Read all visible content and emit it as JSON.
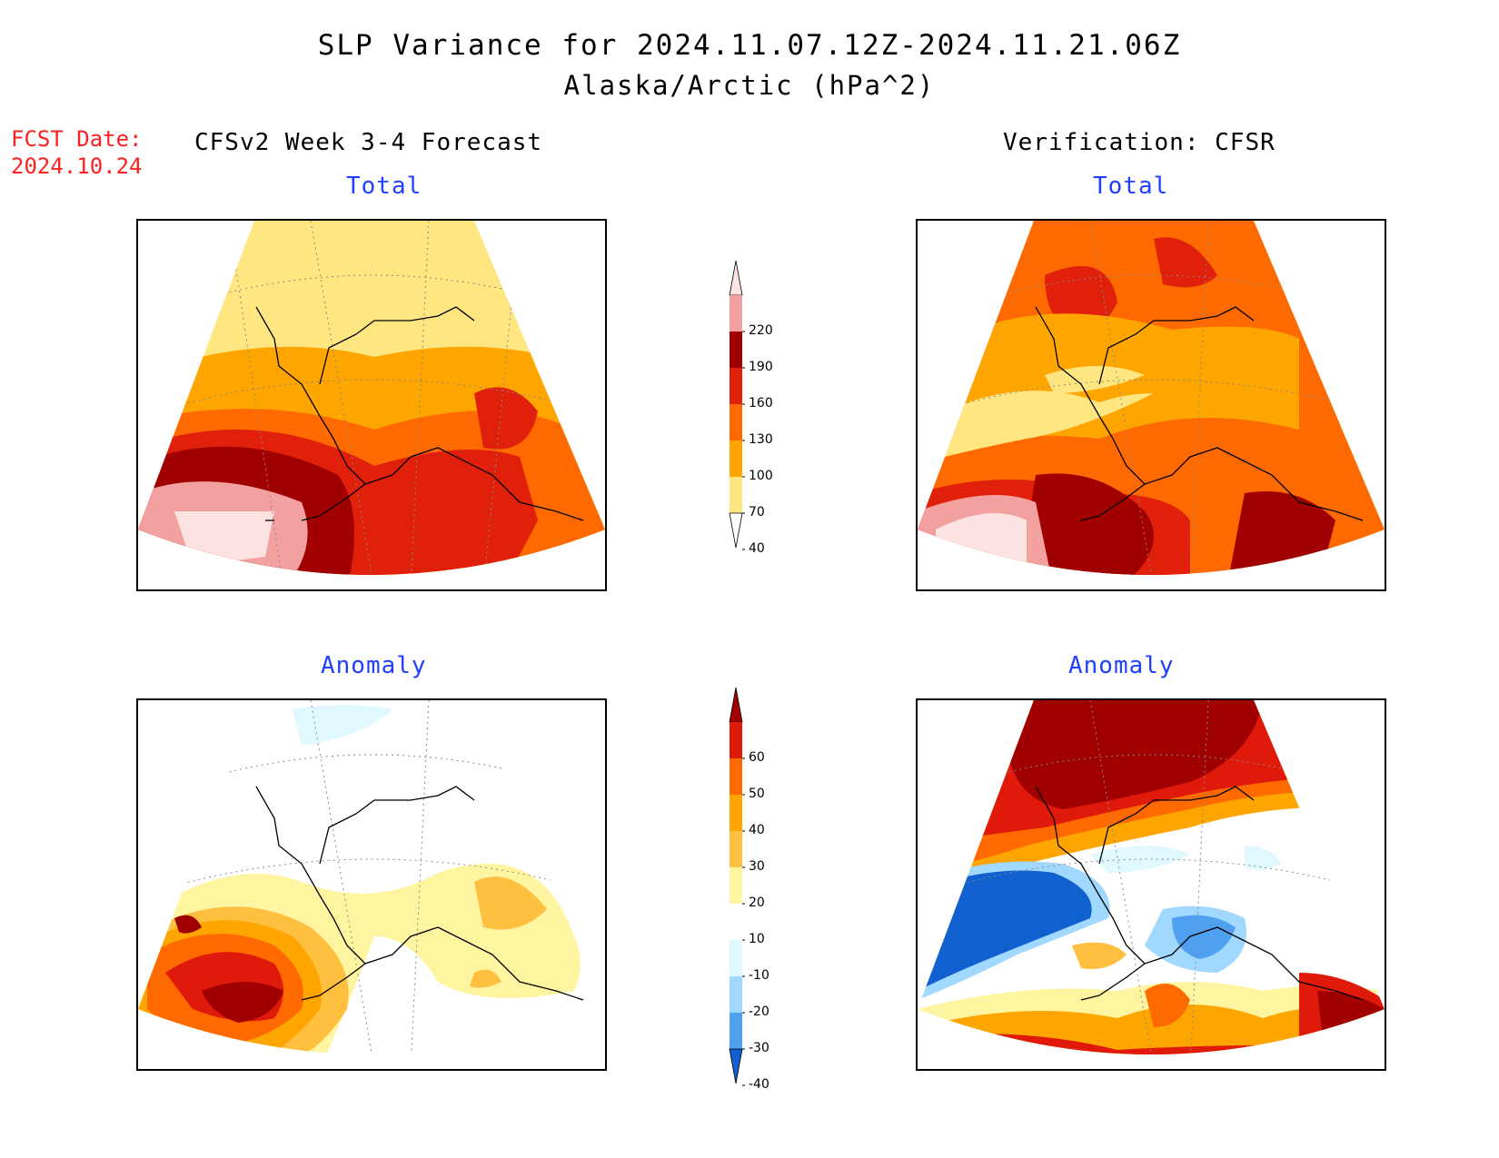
{
  "title": {
    "line1": "SLP Variance for 2024.11.07.12Z-2024.11.21.06Z",
    "line2": "Alaska/Arctic (hPa^2)"
  },
  "forecast_date": {
    "label": "FCST Date:",
    "value": "2024.10.24"
  },
  "left_header": "CFSv2 Week 3-4 Forecast",
  "right_header": "Verification: CFSR",
  "panels": {
    "top_left": {
      "subtitle": "Total"
    },
    "top_right": {
      "subtitle": "Total"
    },
    "bottom_left": {
      "subtitle": "Anomaly"
    },
    "bottom_right": {
      "subtitle": "Anomaly"
    }
  },
  "colorbars": {
    "total": {
      "levels": [
        "220",
        "190",
        "160",
        "130",
        "100",
        "70",
        "40"
      ],
      "colors": [
        "#fde2e2",
        "#f2a0a0",
        "#a00000",
        "#e0200a",
        "#ff6a00",
        "#ffa500",
        "#ffe680"
      ]
    },
    "anomaly": {
      "levels": [
        "60",
        "50",
        "40",
        "30",
        "20",
        "10",
        "-10",
        "-20",
        "-30",
        "-40"
      ],
      "colors": [
        "#a00000",
        "#e01a0a",
        "#ff6a00",
        "#ffa500",
        "#ffc040",
        "#fff5a0",
        "#ffffff",
        "#e0f8ff",
        "#a0d8ff",
        "#50a0f0",
        "#1060d0"
      ]
    }
  },
  "fill_colors": {
    "pink_light": "#fde2e2",
    "pink": "#f2a0a0",
    "dark_red": "#a00000",
    "red": "#e0200a",
    "orange_dark": "#ff6a00",
    "orange": "#ffa500",
    "yellow": "#ffe680",
    "light_yellow": "#fff5a0",
    "gold": "#ffc040",
    "light_cyan": "#e0f8ff",
    "light_blue": "#a0d8ff",
    "mid_blue": "#50a0f0",
    "dark_blue": "#1060d0"
  }
}
